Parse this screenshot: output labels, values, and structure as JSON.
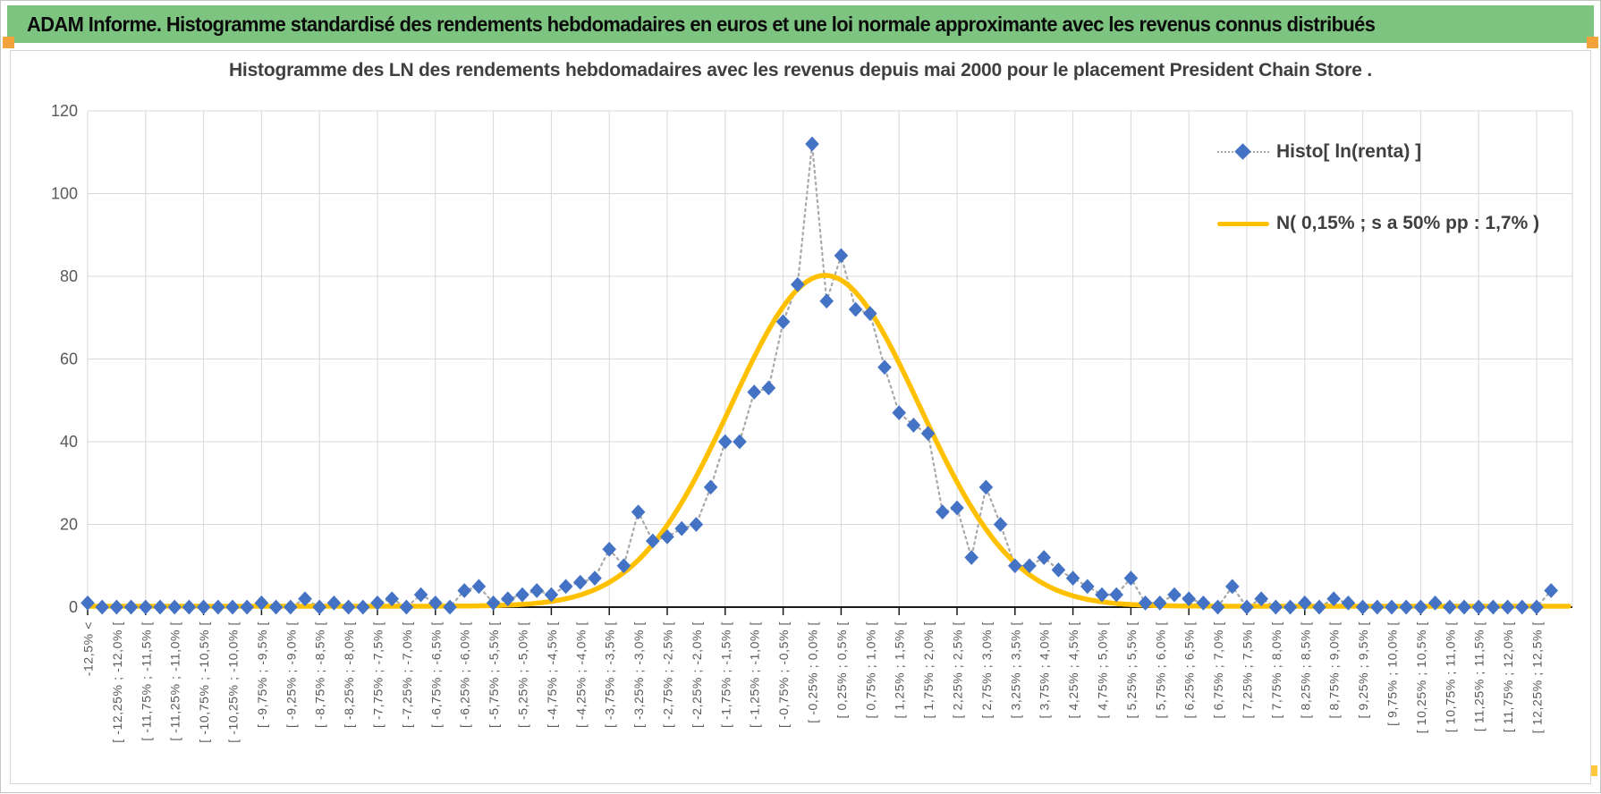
{
  "page": {
    "header": {
      "title": "ADAM Informe. Histogramme standardisé des rendements hebdomadaires en euros et une loi normale approximante avec les revenus connus distribués",
      "background_color": "#7cc47f",
      "handle_color": "#f2a33b",
      "corner_handle_color": "#ffc83c"
    }
  },
  "chart_data": {
    "type": "line",
    "title": "Histogramme des LN des rendements hebdomadaires avec les revenus depuis mai 2000 pour le placement President Chain Store .",
    "xlabel": "",
    "ylabel": "",
    "ylim": [
      0,
      120
    ],
    "yticks": [
      0,
      20,
      40,
      60,
      80,
      100,
      120
    ],
    "grid": true,
    "legend_position": "top-right",
    "categories": [
      "-12,5% <",
      "",
      "[ -12,25% ; -12,0% [",
      "",
      "[ -11,75% ; -11,5% [",
      "",
      "[ -11,25% ; -11,0% [",
      "",
      "[ -10,75% ; -10,5% [",
      "",
      "[ -10,25% ; -10,0% [",
      "",
      "[ -9,75% ; -9,5% [",
      "",
      "[ -9,25% ; -9,0% [",
      "",
      "[ -8,75% ; -8,5% [",
      "",
      "[ -8,25% ; -8,0% [",
      "",
      "[ -7,75% ; -7,5% [",
      "",
      "[ -7,25% ; -7,0% [",
      "",
      "[ -6,75% ; -6,5% [",
      "",
      "[ -6,25% ; -6,0% [",
      "",
      "[ -5,75% ; -5,5% [",
      "",
      "[ -5,25% ; -5,0% [",
      "",
      "[ -4,75% ; -4,5% [",
      "",
      "[ -4,25% ; -4,0% [",
      "",
      "[ -3,75% ; -3,5% [",
      "",
      "[ -3,25% ; -3,0% [",
      "",
      "[ -2,75% ; -2,5% [",
      "",
      "[ -2,25% ; -2,0% [",
      "",
      "[ -1,75% ; -1,5% [",
      "",
      "[ -1,25% ; -1,0% [",
      "",
      "[ -0,75% ; -0,5% [",
      "",
      "[ -0,25% ; 0,0% [",
      "",
      "[ 0,25% ; 0,5% [",
      "",
      "[ 0,75% ; 1,0% [",
      "",
      "[ 1,25% ; 1,5% [",
      "",
      "[ 1,75% ; 2,0% [",
      "",
      "[ 2,25% ; 2,5% [",
      "",
      "[ 2,75% ; 3,0% [",
      "",
      "[ 3,25% ; 3,5% [",
      "",
      "[ 3,75% ; 4,0% [",
      "",
      "[ 4,25% ; 4,5% [",
      "",
      "[ 4,75% ; 5,0% [",
      "",
      "[ 5,25% ; 5,5% [",
      "",
      "[ 5,75% ; 6,0% [",
      "",
      "[ 6,25% ; 6,5% [",
      "",
      "[ 6,75% ; 7,0% [",
      "",
      "[ 7,25% ; 7,5% [",
      "",
      "[ 7,75% ; 8,0% [",
      "",
      "[ 8,25% ; 8,5% [",
      "",
      "[ 8,75% ; 9,0% [",
      "",
      "[ 9,25% ; 9,5% [",
      "",
      "[ 9,75% ; 10,0% [",
      "",
      "[ 10,25% ; 10,5% [",
      "",
      "[ 10,75% ; 11,0% [",
      "",
      "[ 11,25% ; 11,5% [",
      "",
      "[ 11,75% ; 12,0% [",
      "",
      "[ 12,25% ; 12,5% [",
      ""
    ],
    "series": [
      {
        "name": "Histo[ ln(renta) ]",
        "kind": "markers-with-dotted-line",
        "marker": "diamond",
        "marker_color": "#4472c4",
        "line_color": "#a8a8a8",
        "values": [
          1,
          0,
          0,
          0,
          0,
          0,
          0,
          0,
          0,
          0,
          0,
          0,
          1,
          0,
          0,
          2,
          0,
          1,
          0,
          0,
          1,
          2,
          0,
          3,
          1,
          0,
          4,
          5,
          1,
          2,
          3,
          4,
          3,
          5,
          6,
          7,
          14,
          10,
          23,
          16,
          17,
          19,
          20,
          29,
          40,
          40,
          52,
          53,
          69,
          78,
          112,
          74,
          85,
          72,
          71,
          58,
          47,
          44,
          42,
          23,
          24,
          12,
          29,
          20,
          10,
          10,
          12,
          9,
          7,
          5,
          3,
          3,
          7,
          1,
          1,
          3,
          2,
          1,
          0,
          5,
          0,
          2,
          0,
          0,
          1,
          0,
          2,
          1,
          0,
          0,
          0,
          0,
          0,
          1,
          0,
          0,
          0,
          0,
          0,
          0,
          0,
          4
        ]
      },
      {
        "name": "N( 0,15% ; s a 50% pp : 1,7% )",
        "kind": "normal-curve",
        "color": "#ffc000",
        "peak_value": 80,
        "center_index": 50.9,
        "sigma_index": 6.5,
        "mean_label": "0,15%",
        "sigma_label": "1,7%"
      }
    ],
    "axis_text_color": "#595959",
    "gridline_color": "#d9d9d9",
    "axis_line_color": "#1a1a1a"
  }
}
